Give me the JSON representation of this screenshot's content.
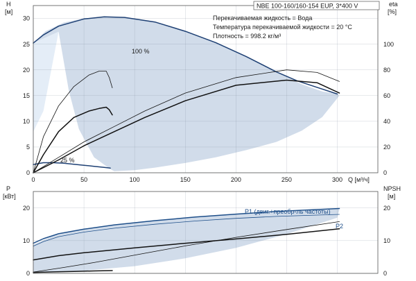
{
  "chart_data": [
    {
      "type": "line",
      "panel": "head-eta",
      "pump_title": "NBE 100-160/160-154 EUP, 3*400 V",
      "info": [
        "Перекачиваемая жидкость = Вода",
        "Температура перекачиваемой жидкости = 20 °C",
        "Плотность = 998.2 кг/м³"
      ],
      "y_left_label": [
        "H",
        "[м]"
      ],
      "y_right_label": [
        "eta",
        "[%]"
      ],
      "x_label": "Q [м³/ч]",
      "xlim": [
        0,
        340
      ],
      "x_ticks": [
        "0",
        "50",
        "100",
        "150",
        "200",
        "250",
        "300"
      ],
      "ylim": [
        0,
        32.5
      ],
      "y_ticks": [
        "0",
        "5",
        "10",
        "15",
        "20",
        "25",
        "30"
      ],
      "y2lim": [
        0,
        130
      ],
      "y2_ticks": [
        "0",
        "20",
        "40",
        "60",
        "80",
        "100"
      ],
      "grid": true,
      "series_labels": [
        "100 %",
        "25 %"
      ],
      "operating_envelope": {
        "x": [
          0,
          12,
          30,
          50,
          70,
          90,
          120,
          150,
          180,
          210,
          240,
          265,
          285,
          300,
          302,
          298,
          285,
          265,
          240,
          210,
          180,
          150,
          120,
          100,
          90,
          80,
          76,
          60,
          45,
          35,
          25
        ],
        "y": [
          25.2,
          27.5,
          29.2,
          30.0,
          30.3,
          30.2,
          29.3,
          27.5,
          25.3,
          22.6,
          19.6,
          17.2,
          15.8,
          15.3,
          15.0,
          14.0,
          10.8,
          8.2,
          6.0,
          4.4,
          3.0,
          1.9,
          1.0,
          0.5,
          0.4,
          0.3,
          0.7,
          3.0,
          8.5,
          16.0,
          27.4
        ]
      },
      "series": [
        {
          "name": "100 %",
          "axis": "left",
          "weight": "thick",
          "x": [
            0,
            10,
            25,
            50,
            70,
            90,
            120,
            150,
            180,
            210,
            240,
            260,
            280,
            300
          ],
          "y": [
            25.2,
            26.8,
            28.5,
            29.9,
            30.3,
            30.2,
            29.3,
            27.5,
            25.3,
            22.6,
            19.6,
            17.9,
            16.6,
            15.3
          ]
        },
        {
          "name": "25 %",
          "axis": "left",
          "weight": "thick",
          "x": [
            0,
            10,
            20,
            30,
            40,
            50,
            60,
            70,
            76
          ],
          "y": [
            1.6,
            1.95,
            1.95,
            1.85,
            1.65,
            1.45,
            1.25,
            1.05,
            0.9
          ]
        },
        {
          "axis": "right",
          "weight": "thin",
          "x": [
            0,
            10,
            25,
            40,
            55,
            65,
            72,
            75,
            78
          ],
          "y": [
            0,
            28,
            52,
            67,
            76,
            79,
            79,
            74,
            66
          ]
        },
        {
          "axis": "right",
          "weight": "thick",
          "x": [
            0,
            10,
            25,
            40,
            55,
            65,
            72,
            75,
            78
          ],
          "y": [
            0,
            14,
            32,
            43,
            48,
            50,
            51,
            49,
            45
          ]
        },
        {
          "axis": "right",
          "weight": "thin",
          "x": [
            0,
            25,
            50,
            80,
            110,
            150,
            200,
            250,
            280,
            302
          ],
          "y": [
            0,
            12,
            24,
            36,
            48,
            62,
            74,
            80,
            78,
            71
          ]
        },
        {
          "axis": "right",
          "weight": "thick",
          "x": [
            0,
            25,
            50,
            80,
            110,
            150,
            200,
            250,
            280,
            302
          ],
          "y": [
            0,
            10,
            21,
            32,
            43,
            56,
            68,
            72,
            70,
            62
          ]
        }
      ]
    },
    {
      "type": "line",
      "panel": "power-npsh",
      "y_left_label": [
        "P",
        "[кВт]"
      ],
      "y_right_label": [
        "NPSH",
        "[м]"
      ],
      "xlim": [
        0,
        340
      ],
      "ylim": [
        0,
        25
      ],
      "y_ticks": [
        "0",
        "10",
        "20"
      ],
      "y2lim": [
        0,
        25
      ],
      "y2_ticks": [
        "0",
        "10",
        "20"
      ],
      "grid": true,
      "series_labels": [
        "P1 (двиг.+преобр-ль частоты)",
        "P2"
      ],
      "power_envelope": {
        "x": [
          0,
          20,
          50,
          100,
          150,
          200,
          250,
          300,
          302,
          300,
          250,
          200,
          150,
          100,
          50,
          20,
          0
        ],
        "y": [
          8.8,
          11.5,
          13.6,
          15.6,
          17.0,
          18.0,
          18.8,
          19.6,
          19.6,
          17.0,
          12.0,
          7.8,
          4.6,
          2.2,
          0.8,
          0.4,
          0.3
        ]
      },
      "series": [
        {
          "name": "P1 (двиг.+преобр-ль частоты)",
          "axis": "left",
          "weight": "thick",
          "x": [
            0,
            10,
            25,
            50,
            80,
            120,
            160,
            200,
            240,
            280,
            302
          ],
          "y": [
            9.2,
            10.6,
            12.1,
            13.5,
            14.8,
            16.1,
            17.2,
            18.1,
            18.9,
            19.5,
            19.8
          ]
        },
        {
          "name": "P2",
          "axis": "left",
          "weight": "thin",
          "x": [
            0,
            10,
            25,
            50,
            80,
            120,
            160,
            200,
            240,
            280,
            302
          ],
          "y": [
            8.3,
            9.7,
            11.2,
            12.6,
            13.8,
            15.0,
            16.0,
            16.8,
            17.4,
            17.8,
            18.0
          ]
        },
        {
          "axis": "right",
          "weight": "thick",
          "x": [
            0,
            25,
            50,
            100,
            150,
            200,
            250,
            302
          ],
          "y": [
            4.1,
            5.4,
            6.3,
            7.8,
            9.2,
            10.5,
            11.9,
            13.6
          ]
        },
        {
          "axis": "right",
          "weight": "thin",
          "x": [
            0,
            30,
            60,
            90,
            120,
            150,
            200,
            250,
            302
          ],
          "y": [
            0.4,
            1.8,
            3.3,
            5.0,
            6.7,
            8.4,
            11.0,
            13.4,
            15.8
          ]
        },
        {
          "axis": "left",
          "weight": "thick",
          "x": [
            0,
            20,
            40,
            60,
            78
          ],
          "y": [
            0.3,
            0.45,
            0.6,
            0.75,
            0.85
          ]
        }
      ]
    }
  ]
}
